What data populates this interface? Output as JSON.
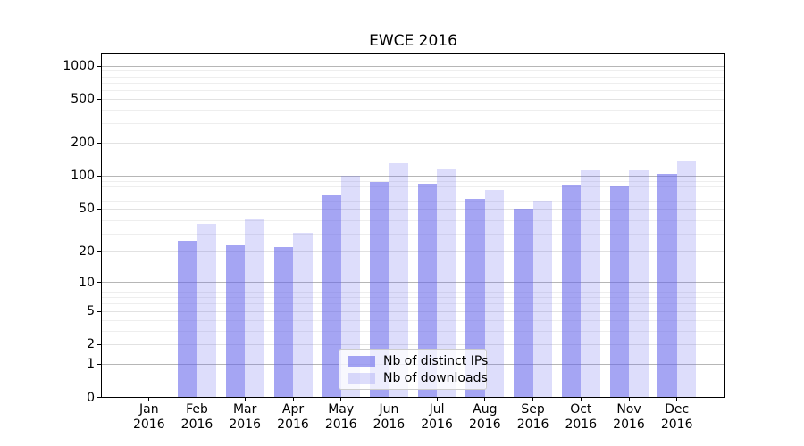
{
  "chart_data": {
    "type": "bar",
    "title": "EWCE 2016",
    "x_year_line": "2016",
    "categories": [
      "Jan",
      "Feb",
      "Mar",
      "Apr",
      "May",
      "Jun",
      "Jul",
      "Aug",
      "Sep",
      "Oct",
      "Nov",
      "Dec"
    ],
    "series": [
      {
        "name": "Nb of distinct IPs",
        "color": "rgba(100,100,235,0.58)",
        "color_hex_on_white": "#a5a5f3",
        "values": [
          0,
          25,
          23,
          22,
          67,
          89,
          85,
          62,
          50,
          84,
          80,
          104
        ]
      },
      {
        "name": "Nb of downloads",
        "color": "rgba(100,100,235,0.22)",
        "color_hex_on_white": "#dcdcfa",
        "values": [
          0,
          36,
          40,
          30,
          101,
          130,
          117,
          74,
          59,
          112,
          112,
          139
        ]
      }
    ],
    "y_scale": "log1p",
    "y_ticks": [
      0,
      1,
      2,
      5,
      10,
      20,
      50,
      100,
      200,
      500,
      1000
    ],
    "ylim": [
      0,
      1330
    ],
    "grid": true,
    "legend_location": "lower center (inside plot)"
  }
}
